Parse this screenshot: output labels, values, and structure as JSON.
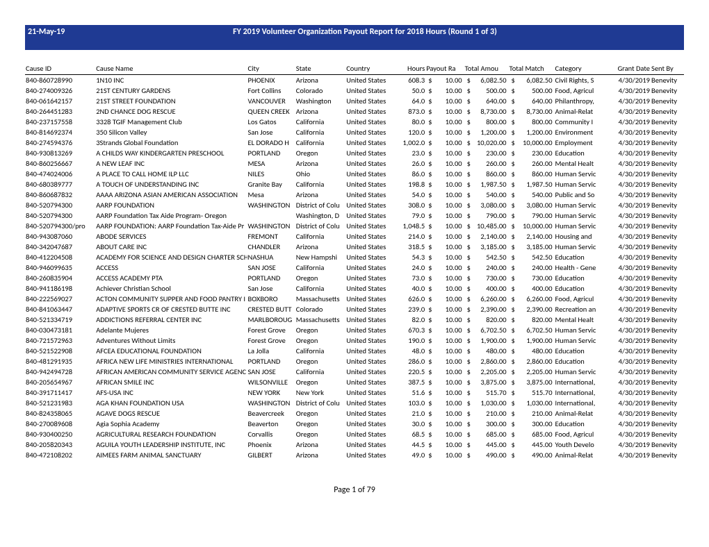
{
  "header": {
    "date": "21-May-19",
    "title": "FY 2019 Volunteer Organization Payout Report for 2018 Hours (Round 1 of 3)"
  },
  "footer": {
    "page_label": "Page 1 of 79"
  },
  "columns": [
    "Cause ID",
    "Cause Name",
    "City",
    "State",
    "Country",
    "Hours",
    "Payout Ra",
    "Total Amou",
    "Total Match",
    "Category",
    "Grant Date",
    "Sent By"
  ],
  "rows": [
    {
      "id": "840-860728990",
      "name": "1N10 INC",
      "city": "PHOENIX",
      "state": "Arizona",
      "country": "United States",
      "hours": "608.3",
      "rate": "10.00",
      "amount": "6,082.50",
      "match": "6,082.50",
      "cat": "Civil Rights, S",
      "date": "4/30/2019",
      "sent": "Benevity"
    },
    {
      "id": "840-274009326",
      "name": "21ST CENTURY GARDENS",
      "city": "Fort Collins",
      "state": "Colorado",
      "country": "United States",
      "hours": "50.0",
      "rate": "10.00",
      "amount": "500.00",
      "match": "500.00",
      "cat": "Food, Agricul",
      "date": "4/30/2019",
      "sent": "Benevity"
    },
    {
      "id": "840-061642157",
      "name": "21ST STREET FOUNDATION",
      "city": "VANCOUVER",
      "state": "Washington",
      "country": "United States",
      "hours": "64.0",
      "rate": "10.00",
      "amount": "640.00",
      "match": "640.00",
      "cat": "Philanthropy,",
      "date": "4/30/2019",
      "sent": "Benevity"
    },
    {
      "id": "840-264451283",
      "name": "2ND CHANCE DOG RESCUE",
      "city": "QUEEN CREEK",
      "state": "Arizona",
      "country": "United States",
      "hours": "873.0",
      "rate": "10.00",
      "amount": "8,730.00",
      "match": "8,730.00",
      "cat": "Animal-Relat",
      "date": "4/30/2019",
      "sent": "Benevity"
    },
    {
      "id": "840-237157558",
      "name": "3328 TGIF Management Club",
      "city": "Los Gatos",
      "state": "California",
      "country": "United States",
      "hours": "80.0",
      "rate": "10.00",
      "amount": "800.00",
      "match": "800.00",
      "cat": "Community I",
      "date": "4/30/2019",
      "sent": "Benevity"
    },
    {
      "id": "840-814692374",
      "name": "350 Silicon Valley",
      "city": "San Jose",
      "state": "California",
      "country": "United States",
      "hours": "120.0",
      "rate": "10.00",
      "amount": "1,200.00",
      "match": "1,200.00",
      "cat": "Environment",
      "date": "4/30/2019",
      "sent": "Benevity"
    },
    {
      "id": "840-274594376",
      "name": "3Strands Global Foundation",
      "city": "EL DORADO H",
      "state": "California",
      "country": "United States",
      "hours": "1,002.0",
      "rate": "10.00",
      "amount": "10,020.00",
      "match": "10,000.00",
      "cat": "Employment",
      "date": "4/30/2019",
      "sent": "Benevity"
    },
    {
      "id": "840-930813269",
      "name": "A CHILDS WAY KINDERGARTEN PRESCHOOL",
      "city": "PORTLAND",
      "state": "Oregon",
      "country": "United States",
      "hours": "23.0",
      "rate": "10.00",
      "amount": "230.00",
      "match": "230.00",
      "cat": "Education",
      "date": "4/30/2019",
      "sent": "Benevity"
    },
    {
      "id": "840-860256667",
      "name": "A NEW LEAF INC",
      "city": "MESA",
      "state": "Arizona",
      "country": "United States",
      "hours": "26.0",
      "rate": "10.00",
      "amount": "260.00",
      "match": "260.00",
      "cat": "Mental Healt",
      "date": "4/30/2019",
      "sent": "Benevity"
    },
    {
      "id": "840-474024006",
      "name": "A PLACE TO CALL HOME ILP LLC",
      "city": "NILES",
      "state": "Ohio",
      "country": "United States",
      "hours": "86.0",
      "rate": "10.00",
      "amount": "860.00",
      "match": "860.00",
      "cat": "Human Servic",
      "date": "4/30/2019",
      "sent": "Benevity"
    },
    {
      "id": "840-680389777",
      "name": "A TOUCH OF UNDERSTANDING INC",
      "city": "Granite Bay",
      "state": "California",
      "country": "United States",
      "hours": "198.8",
      "rate": "10.00",
      "amount": "1,987.50",
      "match": "1,987.50",
      "cat": "Human Servic",
      "date": "4/30/2019",
      "sent": "Benevity"
    },
    {
      "id": "840-860687832",
      "name": "AAAA ARIZONA ASIAN AMERICAN ASSOCIATION",
      "city": "Mesa",
      "state": "Arizona",
      "country": "United States",
      "hours": "54.0",
      "rate": "10.00",
      "amount": "540.00",
      "match": "540.00",
      "cat": "Public and So",
      "date": "4/30/2019",
      "sent": "Benevity"
    },
    {
      "id": "840-520794300",
      "name": "AARP FOUNDATION",
      "city": "WASHINGTON",
      "state": "District of Colu",
      "country": "United States",
      "hours": "308.0",
      "rate": "10.00",
      "amount": "3,080.00",
      "match": "3,080.00",
      "cat": "Human Servic",
      "date": "4/30/2019",
      "sent": "Benevity"
    },
    {
      "id": "840-520794300",
      "name": "AARP Foundation Tax Aide Program- Oregon",
      "city": "",
      "state": "Washington, D",
      "country": "United States",
      "hours": "79.0",
      "rate": "10.00",
      "amount": "790.00",
      "match": "790.00",
      "cat": "Human Servic",
      "date": "4/30/2019",
      "sent": "Benevity"
    },
    {
      "id": "840-520794300/pro",
      "name": "AARP FOUNDATION:  AARP Foundation Tax-Aide Pr",
      "city": "WASHINGTON",
      "state": "District of Colu",
      "country": "United States",
      "hours": "1,048.5",
      "rate": "10.00",
      "amount": "10,485.00",
      "match": "10,000.00",
      "cat": "Human Servic",
      "date": "4/30/2019",
      "sent": "Benevity"
    },
    {
      "id": "840-943087060",
      "name": "ABODE SERVICES",
      "city": "FREMONT",
      "state": "California",
      "country": "United States",
      "hours": "214.0",
      "rate": "10.00",
      "amount": "2,140.00",
      "match": "2,140.00",
      "cat": "Housing and",
      "date": "4/30/2019",
      "sent": "Benevity"
    },
    {
      "id": "840-342047687",
      "name": "ABOUT CARE INC",
      "city": "CHANDLER",
      "state": "Arizona",
      "country": "United States",
      "hours": "318.5",
      "rate": "10.00",
      "amount": "3,185.00",
      "match": "3,185.00",
      "cat": "Human Servic",
      "date": "4/30/2019",
      "sent": "Benevity"
    },
    {
      "id": "840-412204508",
      "name": "ACADEMY FOR SCIENCE AND DESIGN CHARTER SCH",
      "city": "NASHUA",
      "state": "New Hampshi",
      "country": "United States",
      "hours": "54.3",
      "rate": "10.00",
      "amount": "542.50",
      "match": "542.50",
      "cat": "Education",
      "date": "4/30/2019",
      "sent": "Benevity"
    },
    {
      "id": "840-946099635",
      "name": "ACCESS",
      "city": "SAN JOSE",
      "state": "California",
      "country": "United States",
      "hours": "24.0",
      "rate": "10.00",
      "amount": "240.00",
      "match": "240.00",
      "cat": "Health - Gene",
      "date": "4/30/2019",
      "sent": "Benevity"
    },
    {
      "id": "840-260835904",
      "name": "ACCESS ACADEMY PTA",
      "city": "PORTLAND",
      "state": "Oregon",
      "country": "United States",
      "hours": "73.0",
      "rate": "10.00",
      "amount": "730.00",
      "match": "730.00",
      "cat": "Education",
      "date": "4/30/2019",
      "sent": "Benevity"
    },
    {
      "id": "840-941186198",
      "name": "Achiever Christian School",
      "city": "San Jose",
      "state": "California",
      "country": "United States",
      "hours": "40.0",
      "rate": "10.00",
      "amount": "400.00",
      "match": "400.00",
      "cat": "Education",
      "date": "4/30/2019",
      "sent": "Benevity"
    },
    {
      "id": "840-222569027",
      "name": "ACTON COMMUNITY SUPPER AND FOOD PANTRY I",
      "city": "BOXBORO",
      "state": "Massachusetts",
      "country": "United States",
      "hours": "626.0",
      "rate": "10.00",
      "amount": "6,260.00",
      "match": "6,260.00",
      "cat": "Food, Agricul",
      "date": "4/30/2019",
      "sent": "Benevity"
    },
    {
      "id": "840-841063447",
      "name": "ADAPTIVE SPORTS CR OF CRESTED BUTTE INC",
      "city": "CRESTED BUTT",
      "state": "Colorado",
      "country": "United States",
      "hours": "239.0",
      "rate": "10.00",
      "amount": "2,390.00",
      "match": "2,390.00",
      "cat": "Recreation an",
      "date": "4/30/2019",
      "sent": "Benevity"
    },
    {
      "id": "840-521334719",
      "name": "ADDICTIONS REFERRAL CENTER INC",
      "city": "MARLBOROUG",
      "state": "Massachusetts",
      "country": "United States",
      "hours": "82.0",
      "rate": "10.00",
      "amount": "820.00",
      "match": "820.00",
      "cat": "Mental Healt",
      "date": "4/30/2019",
      "sent": "Benevity"
    },
    {
      "id": "840-030473181",
      "name": "Adelante Mujeres",
      "city": "Forest Grove",
      "state": "Oregon",
      "country": "United States",
      "hours": "670.3",
      "rate": "10.00",
      "amount": "6,702.50",
      "match": "6,702.50",
      "cat": "Human Servic",
      "date": "4/30/2019",
      "sent": "Benevity"
    },
    {
      "id": "840-721572963",
      "name": "Adventures Without Limits",
      "city": "Forest Grove",
      "state": "Oregon",
      "country": "United States",
      "hours": "190.0",
      "rate": "10.00",
      "amount": "1,900.00",
      "match": "1,900.00",
      "cat": "Human Servic",
      "date": "4/30/2019",
      "sent": "Benevity"
    },
    {
      "id": "840-521522908",
      "name": "AFCEA EDUCATIONAL FOUNDATION",
      "city": "La Jolla",
      "state": "California",
      "country": "United States",
      "hours": "48.0",
      "rate": "10.00",
      "amount": "480.00",
      "match": "480.00",
      "cat": "Education",
      "date": "4/30/2019",
      "sent": "Benevity"
    },
    {
      "id": "840-481291935",
      "name": "AFRICA NEW LIFE MINISTRIES INTERNATIONAL",
      "city": "PORTLAND",
      "state": "Oregon",
      "country": "United States",
      "hours": "286.0",
      "rate": "10.00",
      "amount": "2,860.00",
      "match": "2,860.00",
      "cat": "Education",
      "date": "4/30/2019",
      "sent": "Benevity"
    },
    {
      "id": "840-942494728",
      "name": "AFRICAN AMERICAN COMMUNITY SERVICE AGENC",
      "city": "SAN JOSE",
      "state": "California",
      "country": "United States",
      "hours": "220.5",
      "rate": "10.00",
      "amount": "2,205.00",
      "match": "2,205.00",
      "cat": "Human Servic",
      "date": "4/30/2019",
      "sent": "Benevity"
    },
    {
      "id": "840-205654967",
      "name": "AFRICAN SMILE INC",
      "city": "WILSONVILLE",
      "state": "Oregon",
      "country": "United States",
      "hours": "387.5",
      "rate": "10.00",
      "amount": "3,875.00",
      "match": "3,875.00",
      "cat": "International,",
      "date": "4/30/2019",
      "sent": "Benevity"
    },
    {
      "id": "840-391711417",
      "name": "AFS-USA INC",
      "city": "NEW YORK",
      "state": "New York",
      "country": "United States",
      "hours": "51.6",
      "rate": "10.00",
      "amount": "515.70",
      "match": "515.70",
      "cat": "International,",
      "date": "4/30/2019",
      "sent": "Benevity"
    },
    {
      "id": "840-521231983",
      "name": "AGA KHAN FOUNDATION USA",
      "city": "WASHINGTON",
      "state": "District of Colu",
      "country": "United States",
      "hours": "103.0",
      "rate": "10.00",
      "amount": "1,030.00",
      "match": "1,030.00",
      "cat": "International,",
      "date": "4/30/2019",
      "sent": "Benevity"
    },
    {
      "id": "840-824358065",
      "name": "AGAVE DOGS RESCUE",
      "city": "Beavercreek",
      "state": "Oregon",
      "country": "United States",
      "hours": "21.0",
      "rate": "10.00",
      "amount": "210.00",
      "match": "210.00",
      "cat": "Animal-Relat",
      "date": "4/30/2019",
      "sent": "Benevity"
    },
    {
      "id": "840-270089608",
      "name": "Agia Sophia Academy",
      "city": "Beaverton",
      "state": "Oregon",
      "country": "United States",
      "hours": "30.0",
      "rate": "10.00",
      "amount": "300.00",
      "match": "300.00",
      "cat": "Education",
      "date": "4/30/2019",
      "sent": "Benevity"
    },
    {
      "id": "840-930400250",
      "name": "AGRICULTURAL RESEARCH FOUNDATION",
      "city": "Corvallis",
      "state": "Oregon",
      "country": "United States",
      "hours": "68.5",
      "rate": "10.00",
      "amount": "685.00",
      "match": "685.00",
      "cat": "Food, Agricul",
      "date": "4/30/2019",
      "sent": "Benevity"
    },
    {
      "id": "840-205820343",
      "name": "AGUILA YOUTH LEADERSHIP INSTITUTE, INC",
      "city": "Phoenix",
      "state": "Arizona",
      "country": "United States",
      "hours": "44.5",
      "rate": "10.00",
      "amount": "445.00",
      "match": "445.00",
      "cat": "Youth Develo",
      "date": "4/30/2019",
      "sent": "Benevity"
    },
    {
      "id": "840-472108202",
      "name": "AIMEES FARM ANIMAL SANCTUARY",
      "city": "GILBERT",
      "state": "Arizona",
      "country": "United States",
      "hours": "49.0",
      "rate": "10.00",
      "amount": "490.00",
      "match": "490.00",
      "cat": "Animal-Relat",
      "date": "4/30/2019",
      "sent": "Benevity"
    }
  ]
}
